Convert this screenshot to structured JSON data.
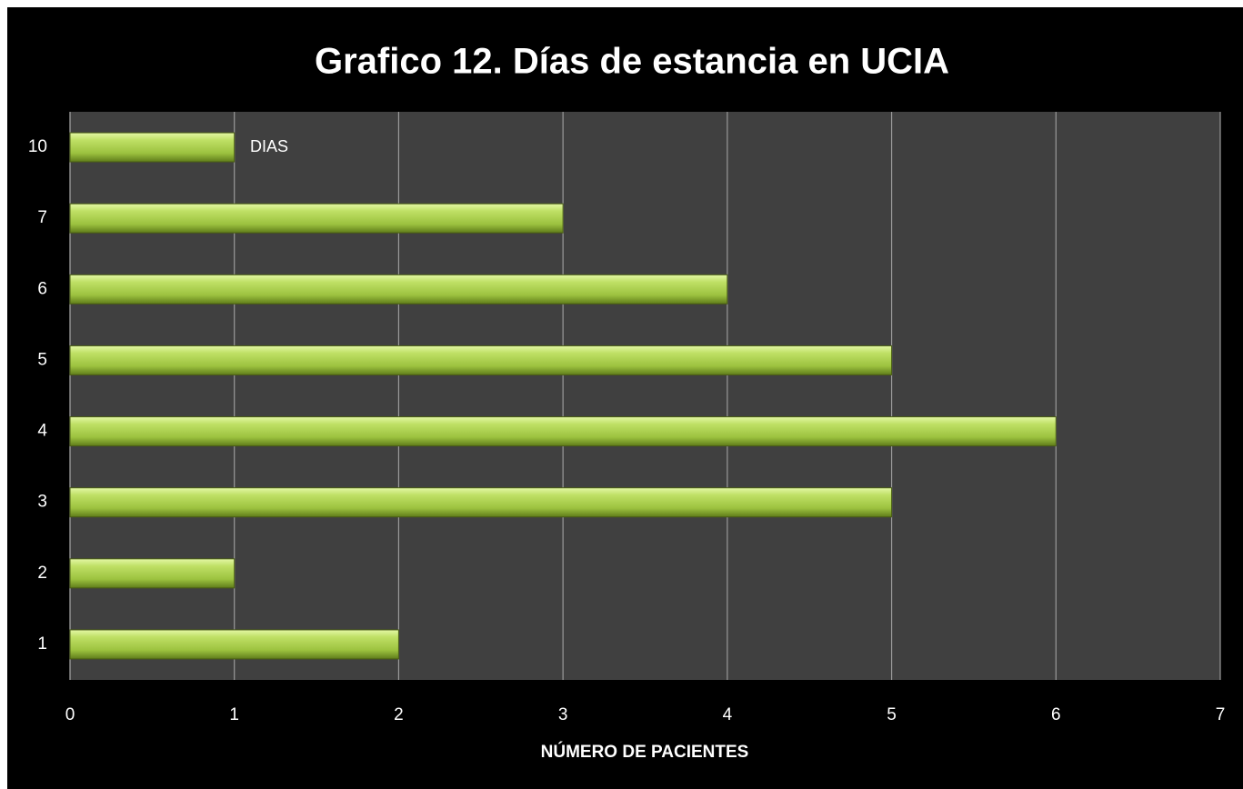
{
  "chart_data": {
    "type": "bar",
    "orientation": "horizontal",
    "title": "Grafico 12. Días de estancia en UCIA",
    "x_label": "NÚMERO DE PACIENTES",
    "categories": [
      "1",
      "2",
      "3",
      "4",
      "5",
      "6",
      "7",
      "10"
    ],
    "series": [
      {
        "name": "DIAS",
        "color": "#a6cc4a",
        "values": [
          2,
          1,
          5,
          6,
          5,
          4,
          3,
          1
        ]
      }
    ],
    "xlim": [
      0,
      7
    ],
    "xticks": [
      0,
      1,
      2,
      3,
      4,
      5,
      6,
      7
    ],
    "grid": true,
    "legend": "top"
  }
}
